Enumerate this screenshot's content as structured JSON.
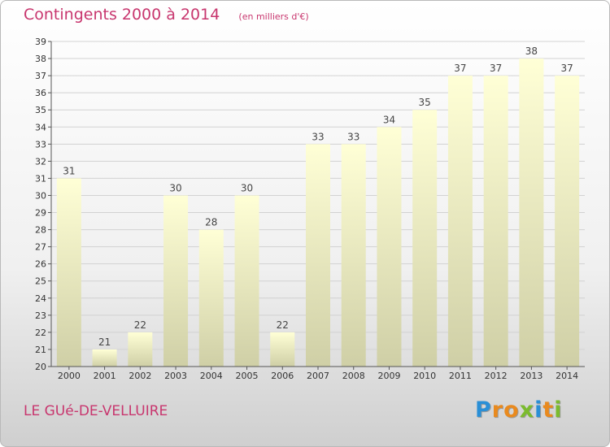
{
  "header": {
    "title": "Contingents 2000 à 2014",
    "unit": "(en milliers d'€)"
  },
  "footer": {
    "commune": "LE GUé-DE-VELLUIRE",
    "logo": {
      "letters": [
        "P",
        "r",
        "o",
        "x",
        "i",
        "t",
        "i"
      ],
      "colors": [
        "#2a8fd6",
        "#e98a1e",
        "#e98a1e",
        "#7bbb2e",
        "#2a8fd6",
        "#e98a1e",
        "#7bbb2e"
      ]
    }
  },
  "colors": {
    "bar_top": "#ffffd6",
    "bar_bottom": "#cfcfa6",
    "title": "#c8366e",
    "grid": "#d2d2d2"
  },
  "chart_data": {
    "type": "bar",
    "categories": [
      "2000",
      "2001",
      "2002",
      "2003",
      "2004",
      "2005",
      "2006",
      "2007",
      "2008",
      "2009",
      "2010",
      "2011",
      "2012",
      "2013",
      "2014"
    ],
    "values": [
      31,
      21,
      22,
      30,
      28,
      30,
      22,
      33,
      33,
      34,
      35,
      37,
      37,
      38,
      37
    ],
    "title": "Contingents 2000 à 2014",
    "ylim": [
      20,
      39
    ],
    "yticks": [
      20,
      21,
      22,
      23,
      24,
      25,
      26,
      27,
      28,
      29,
      30,
      31,
      32,
      33,
      34,
      35,
      36,
      37,
      38,
      39
    ],
    "grid": true,
    "data_labels": true
  }
}
